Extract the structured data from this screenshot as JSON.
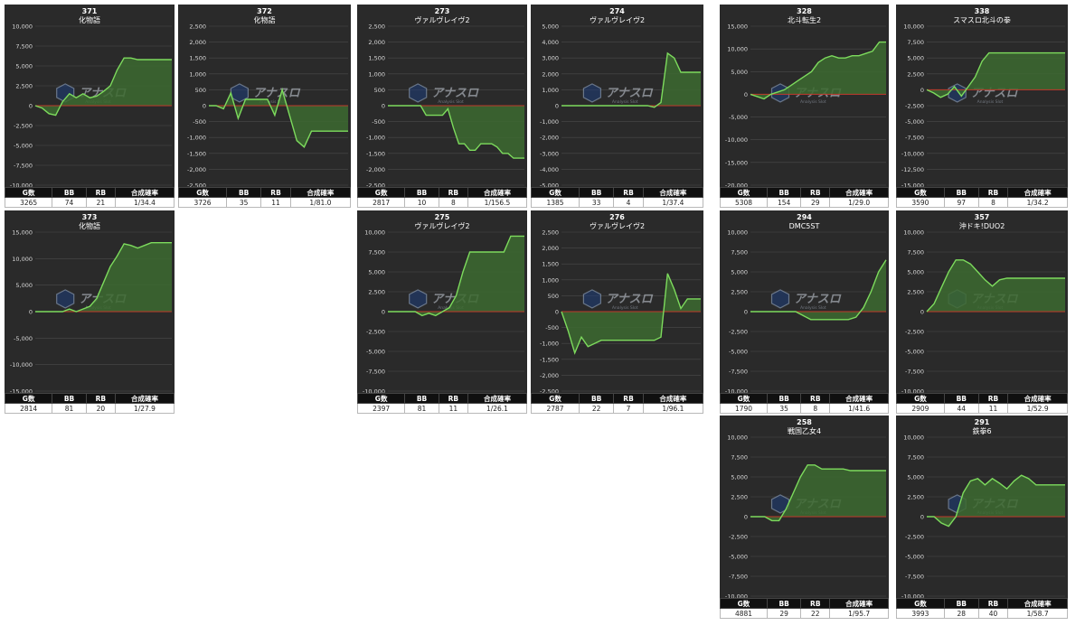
{
  "colors": {
    "panel_bg": "#2a2a2a",
    "line": "#7ddb5d",
    "area": "#3c6a30",
    "zero_line": "#c0392b",
    "grid": "#4a4a4a",
    "text": "#ffffff"
  },
  "columns": [
    "G数",
    "BB",
    "RB",
    "合成確率"
  ],
  "watermark": {
    "text": "アナスロ",
    "subtitle": "Analysis Slot",
    "icon": "hexagon-logo-icon"
  },
  "chart_data": [
    {
      "type": "area",
      "number": "371",
      "title": "化物語",
      "ylim": [
        -10000,
        10000
      ],
      "tick_step": 2500,
      "y": [
        0,
        -300,
        -1000,
        -1200,
        500,
        1500,
        1000,
        1500,
        1000,
        1200,
        1800,
        2500,
        4500,
        6000,
        6000,
        5800,
        5800,
        5800,
        5800,
        5800,
        5800
      ],
      "stats": {
        "g": "3265",
        "bb": "74",
        "rb": "21",
        "prob": "1/34.4"
      }
    },
    {
      "type": "area",
      "number": "372",
      "title": "化物語",
      "ylim": [
        -2500,
        2500
      ],
      "tick_step": 500,
      "y": [
        0,
        0,
        -100,
        400,
        -400,
        200,
        200,
        200,
        200,
        -300,
        500,
        -300,
        -1100,
        -1300,
        -800,
        -800,
        -800,
        -800,
        -800,
        -800
      ],
      "stats": {
        "g": "3726",
        "bb": "35",
        "rb": "11",
        "prob": "1/81.0"
      }
    },
    {
      "type": "area",
      "number": "273",
      "title": "ヴァルヴレイヴ2",
      "ylim": [
        -2500,
        2500
      ],
      "tick_step": 500,
      "y": [
        0,
        0,
        0,
        0,
        0,
        0,
        0,
        -300,
        -300,
        -300,
        -300,
        -100,
        -700,
        -1200,
        -1200,
        -1400,
        -1400,
        -1200,
        -1200,
        -1200,
        -1300,
        -1500,
        -1500,
        -1650,
        -1650,
        -1650
      ],
      "stats": {
        "g": "2817",
        "bb": "10",
        "rb": "8",
        "prob": "1/156.5"
      }
    },
    {
      "type": "area",
      "number": "274",
      "title": "ヴァルヴレイヴ2",
      "ylim": [
        -5000,
        5000
      ],
      "tick_step": 1000,
      "y": [
        0,
        0,
        0,
        0,
        0,
        0,
        0,
        0,
        0,
        0,
        0,
        0,
        0,
        0,
        -100,
        200,
        3300,
        3000,
        2100,
        2100,
        2100,
        2100
      ],
      "stats": {
        "g": "1385",
        "bb": "33",
        "rb": "4",
        "prob": "1/37.4"
      }
    },
    {
      "type": "area",
      "number": "328",
      "title": "北斗転生2",
      "ylim": [
        -20000,
        15000
      ],
      "tick_step": 5000,
      "y": [
        0,
        -500,
        -1000,
        0,
        500,
        1000,
        2000,
        3000,
        4000,
        5000,
        7000,
        8000,
        8500,
        8000,
        8000,
        8500,
        8500,
        9000,
        9500,
        11500,
        11500
      ],
      "stats": {
        "g": "5308",
        "bb": "154",
        "rb": "29",
        "prob": "1/29.0"
      }
    },
    {
      "type": "area",
      "number": "338",
      "title": "スマスロ北斗の拳",
      "ylim": [
        -15000,
        10000
      ],
      "tick_step": 2500,
      "y": [
        0,
        -500,
        -1200,
        -700,
        500,
        -1000,
        500,
        2000,
        4500,
        5800,
        5800,
        5800,
        5800,
        5800,
        5800,
        5800,
        5800,
        5800,
        5800,
        5800,
        5800
      ],
      "stats": {
        "g": "3590",
        "bb": "97",
        "rb": "8",
        "prob": "1/34.2"
      }
    },
    {
      "type": "area",
      "number": "373",
      "title": "化物語",
      "ylim": [
        -15000,
        15000
      ],
      "tick_step": 5000,
      "y": [
        0,
        0,
        0,
        0,
        0,
        500,
        0,
        500,
        1000,
        2500,
        5500,
        8500,
        10500,
        12800,
        12500,
        12000,
        12500,
        13000,
        13000,
        13000,
        13000
      ],
      "stats": {
        "g": "2814",
        "bb": "81",
        "rb": "20",
        "prob": "1/27.9"
      }
    },
    {
      "type": "area",
      "number": "275",
      "title": "ヴァルヴレイヴ2",
      "ylim": [
        -10000,
        10000
      ],
      "tick_step": 2500,
      "y": [
        0,
        0,
        0,
        0,
        0,
        -500,
        -200,
        -500,
        0,
        500,
        2000,
        5000,
        7500,
        7500,
        7500,
        7500,
        7500,
        7500,
        9500,
        9500,
        9500
      ],
      "stats": {
        "g": "2397",
        "bb": "81",
        "rb": "11",
        "prob": "1/26.1"
      }
    },
    {
      "type": "area",
      "number": "276",
      "title": "ヴァルヴレイヴ2",
      "ylim": [
        -2500,
        2500
      ],
      "tick_step": 500,
      "y": [
        0,
        -600,
        -1300,
        -800,
        -1100,
        -1000,
        -900,
        -900,
        -900,
        -900,
        -900,
        -900,
        -900,
        -900,
        -900,
        -800,
        1200,
        700,
        100,
        400,
        400,
        400
      ],
      "stats": {
        "g": "2787",
        "bb": "22",
        "rb": "7",
        "prob": "1/96.1"
      }
    },
    {
      "type": "area",
      "number": "294",
      "title": "DMC5ST",
      "ylim": [
        -10000,
        10000
      ],
      "tick_step": 2500,
      "y": [
        0,
        0,
        0,
        0,
        0,
        0,
        0,
        -500,
        -1000,
        -1000,
        -1000,
        -1000,
        -1000,
        -1000,
        -700,
        500,
        2500,
        5000,
        6500
      ],
      "stats": {
        "g": "1790",
        "bb": "35",
        "rb": "8",
        "prob": "1/41.6"
      }
    },
    {
      "type": "area",
      "number": "357",
      "title": "沖ドキ!DUO2",
      "ylim": [
        -10000,
        10000
      ],
      "tick_step": 2500,
      "y": [
        0,
        1000,
        3000,
        5000,
        6500,
        6500,
        6000,
        5000,
        4000,
        3200,
        4000,
        4200,
        4200,
        4200,
        4200,
        4200,
        4200,
        4200,
        4200,
        4200
      ],
      "stats": {
        "g": "2909",
        "bb": "44",
        "rb": "11",
        "prob": "1/52.9"
      }
    },
    {
      "type": "area",
      "number": "258",
      "title": "戦国乙女4",
      "ylim": [
        -10000,
        10000
      ],
      "tick_step": 2500,
      "y": [
        0,
        0,
        0,
        -500,
        -500,
        1000,
        3000,
        5000,
        6500,
        6500,
        6000,
        6000,
        6000,
        6000,
        5800,
        5800,
        5800,
        5800,
        5800,
        5800
      ],
      "stats": {
        "g": "4881",
        "bb": "29",
        "rb": "22",
        "prob": "1/95.7"
      }
    },
    {
      "type": "area",
      "number": "291",
      "title": "鉄拳6",
      "ylim": [
        -10000,
        10000
      ],
      "tick_step": 2500,
      "y": [
        0,
        0,
        -800,
        -1200,
        0,
        3000,
        4500,
        4800,
        4000,
        4800,
        4200,
        3500,
        4500,
        5200,
        4800,
        4000,
        4000,
        4000,
        4000,
        4000
      ],
      "stats": {
        "g": "3993",
        "bb": "28",
        "rb": "40",
        "prob": "1/58.7"
      }
    }
  ]
}
